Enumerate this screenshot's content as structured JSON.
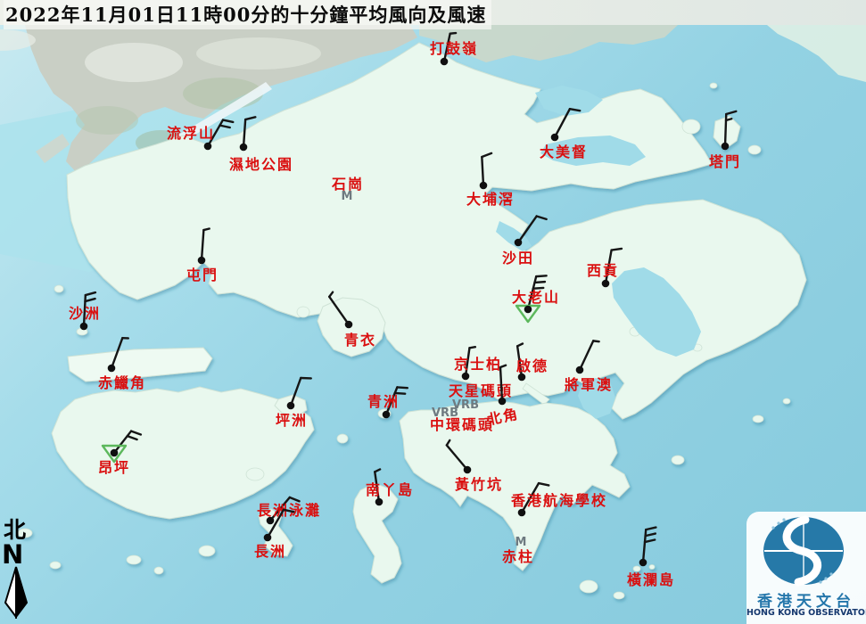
{
  "title": "2022年11月01日11時00分的十分鐘平均風向及風速",
  "compass": {
    "label_cn": "北",
    "label_en": "N"
  },
  "logo": {
    "name_cn": "香港天文台",
    "name_en": "HONG KONG OBSERVATORY"
  },
  "markers": {
    "missing_label": "M",
    "variable_label": "VRB"
  },
  "colors": {
    "station_label": "#da1010",
    "grey_marker": "#6e7a80",
    "barb": "#151515",
    "gust_triangle": "#5cb85c",
    "sea": "#93d2e3",
    "land": "#e9f8ee"
  },
  "stations": [
    {
      "name": "打鼓嶺",
      "dot": [
        498,
        69
      ],
      "label": [
        509,
        54
      ],
      "barb": {
        "dir": 12,
        "len": 32,
        "ticks": [
          "half"
        ]
      }
    },
    {
      "name": "流浮山",
      "dot": [
        233,
        164
      ],
      "label": [
        214,
        149
      ],
      "barb": {
        "dir": 30,
        "len": 34,
        "ticks": [
          "full",
          "full"
        ]
      }
    },
    {
      "name": "濕地公園",
      "dot": [
        273,
        165
      ],
      "label": [
        293,
        184
      ],
      "barb": {
        "dir": 4,
        "len": 31,
        "ticks": [
          "full"
        ]
      }
    },
    {
      "name": "石崗",
      "label": [
        390,
        206
      ],
      "missing": [
        389,
        219
      ]
    },
    {
      "name": "大埔滘",
      "dot": [
        542,
        208
      ],
      "label": [
        550,
        223
      ],
      "barb": {
        "dir": -3,
        "len": 32,
        "ticks": [
          "full"
        ]
      }
    },
    {
      "name": "大美督",
      "dot": [
        622,
        154
      ],
      "label": [
        632,
        170
      ],
      "barb": {
        "dir": 28,
        "len": 36,
        "ticks": [
          "full"
        ]
      }
    },
    {
      "name": "塔門",
      "dot": [
        813,
        164
      ],
      "label": [
        813,
        181
      ],
      "barb": {
        "dir": 2,
        "len": 36,
        "ticks": [
          "full",
          "half"
        ]
      }
    },
    {
      "name": "屯門",
      "dot": [
        226,
        292
      ],
      "label": [
        227,
        308
      ],
      "barb": {
        "dir": 4,
        "len": 34,
        "ticks": [
          "half"
        ]
      }
    },
    {
      "name": "沙田",
      "dot": [
        581,
        272
      ],
      "label": [
        581,
        289
      ],
      "barb": {
        "dir": 35,
        "len": 36,
        "ticks": [
          "full"
        ]
      }
    },
    {
      "name": "西貢",
      "dot": [
        679,
        318
      ],
      "label": [
        676,
        303
      ],
      "barb": {
        "dir": 10,
        "len": 38,
        "ticks": [
          "full"
        ]
      }
    },
    {
      "name": "大老山",
      "dot": [
        592,
        347
      ],
      "label": [
        601,
        333
      ],
      "barb": {
        "dir": 14,
        "len": 38,
        "ticks": [
          "full",
          "full",
          "full"
        ]
      },
      "triangle": [
        592,
        350
      ]
    },
    {
      "name": "沙洲",
      "dot": [
        94,
        366
      ],
      "label": [
        95,
        351
      ],
      "barb": {
        "dir": 3,
        "len": 35,
        "ticks": [
          "full",
          "full"
        ]
      }
    },
    {
      "name": "青衣",
      "dot": [
        391,
        364
      ],
      "label": [
        404,
        381
      ],
      "barb": {
        "dir": -35,
        "len": 38,
        "ticks": [
          "half"
        ]
      }
    },
    {
      "name": "赤鱲角",
      "dot": [
        125,
        413
      ],
      "label": [
        137,
        429
      ],
      "barb": {
        "dir": 20,
        "len": 36,
        "ticks": [
          "half"
        ]
      }
    },
    {
      "name": "昂坪",
      "dot": [
        128,
        508
      ],
      "label": [
        128,
        524
      ],
      "barb": {
        "dir": 38,
        "len": 31,
        "ticks": [
          "full",
          "full"
        ]
      },
      "triangle": [
        128,
        507
      ]
    },
    {
      "name": "坪洲",
      "dot": [
        326,
        455
      ],
      "label": [
        327,
        471
      ],
      "barb": {
        "dir": 20,
        "len": 33,
        "ticks": [
          "full"
        ]
      }
    },
    {
      "name": "青洲",
      "dot": [
        433,
        465
      ],
      "label": [
        430,
        450
      ],
      "barb": {
        "dir": 22,
        "len": 33,
        "ticks": [
          "full",
          "full"
        ]
      }
    },
    {
      "name": "京士柏",
      "dot": [
        522,
        422
      ],
      "label": [
        536,
        408
      ],
      "barb": {
        "dir": 8,
        "len": 32,
        "ticks": [
          "half"
        ]
      }
    },
    {
      "name": "啟德",
      "dot": [
        585,
        423
      ],
      "label": [
        597,
        410
      ],
      "barb": {
        "dir": -8,
        "len": 35,
        "ticks": [
          "half"
        ]
      }
    },
    {
      "name": "天星碼頭",
      "label": [
        539,
        438
      ],
      "variable": [
        522,
        454
      ]
    },
    {
      "name": "中環碼頭",
      "label": [
        518,
        476
      ],
      "variable": [
        499,
        463
      ]
    },
    {
      "name": "北角",
      "dot": [
        563,
        450
      ],
      "label": [
        564,
        467
      ],
      "label_rotate": -12,
      "barb": {
        "dir": -3,
        "len": 38,
        "ticks": [
          "half"
        ]
      }
    },
    {
      "name": "將軍澳",
      "dot": [
        650,
        415
      ],
      "label": [
        660,
        431
      ],
      "barb": {
        "dir": 25,
        "len": 36,
        "ticks": [
          "half"
        ]
      }
    },
    {
      "name": "黃竹坑",
      "dot": [
        524,
        527
      ],
      "label": [
        537,
        543
      ],
      "barb": {
        "dir": -40,
        "len": 36,
        "ticks": [
          "half"
        ]
      }
    },
    {
      "name": "香港航海學校",
      "dot": [
        585,
        575
      ],
      "label": [
        627,
        561
      ],
      "barb": {
        "dir": 30,
        "len": 38,
        "ticks": [
          "full"
        ]
      }
    },
    {
      "name": "南丫島",
      "dot": [
        425,
        563
      ],
      "label": [
        437,
        549
      ],
      "barb": {
        "dir": -8,
        "len": 34,
        "ticks": [
          "half"
        ]
      }
    },
    {
      "name": "赤柱",
      "label": [
        581,
        624
      ],
      "missing": [
        584,
        607
      ]
    },
    {
      "name": "長洲泳灘",
      "dot": [
        303,
        584
      ],
      "label": [
        324,
        572
      ],
      "barb": {
        "dir": 40,
        "len": 34,
        "ticks": [
          "full"
        ]
      }
    },
    {
      "name": "長洲",
      "dot": [
        300,
        603
      ],
      "label": [
        303,
        618
      ],
      "barb": {
        "dir": 30,
        "len": 36,
        "ticks": [
          "full"
        ]
      }
    },
    {
      "name": "橫瀾島",
      "dot": [
        721,
        631
      ],
      "label": [
        730,
        650
      ],
      "barb": {
        "dir": 5,
        "len": 37,
        "ticks": [
          "full",
          "full",
          "full"
        ]
      }
    }
  ]
}
